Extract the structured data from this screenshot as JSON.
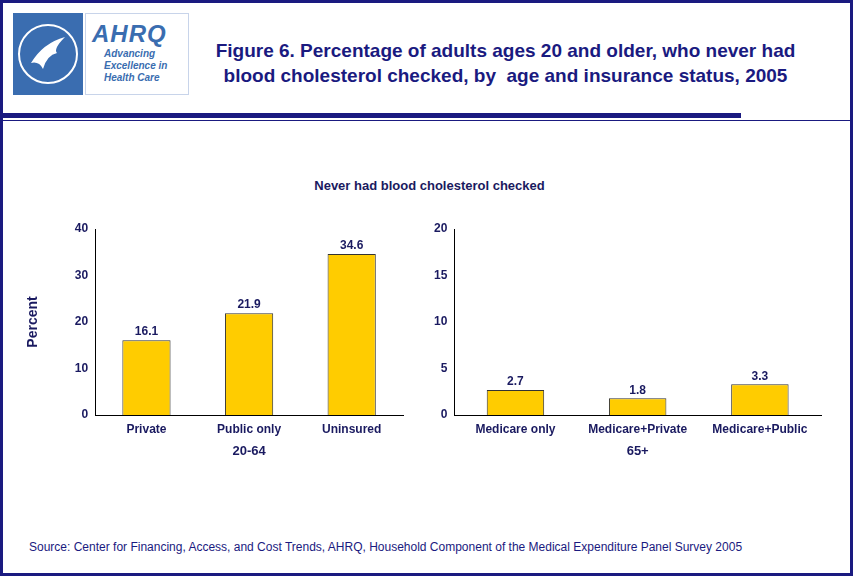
{
  "header": {
    "logo_text": "AHRQ",
    "logo_tagline": "Advancing Excellence in Health Care",
    "title": "Figure 6. Percentage of adults ages 20 and older, who never had blood cholesterol checked, by  age and insurance status, 2005"
  },
  "subtitle": "Never had blood cholesterol checked",
  "chart_data": [
    {
      "type": "bar",
      "categories": [
        "Private",
        "Public only",
        "Uninsured"
      ],
      "values": [
        16.1,
        21.9,
        34.6
      ],
      "color": "#ffcc00",
      "ylim": [
        0,
        40
      ],
      "yticks": [
        0,
        10,
        20,
        30,
        40
      ],
      "ylabel": "Percent",
      "xlabel": "20-64",
      "grid": false,
      "data_labels": true
    },
    {
      "type": "bar",
      "categories": [
        "Medicare only",
        "Medicare+Private",
        "Medicare+Public"
      ],
      "values": [
        2.7,
        1.8,
        3.3
      ],
      "color": "#ffcc00",
      "ylim": [
        0,
        20
      ],
      "yticks": [
        0,
        5,
        10,
        15,
        20
      ],
      "xlabel": "65+",
      "grid": false,
      "data_labels": true
    }
  ],
  "source": "Source: Center for Financing, Access, and Cost Trends, AHRQ, Household Component of the Medical Expenditure Panel Survey 2005"
}
